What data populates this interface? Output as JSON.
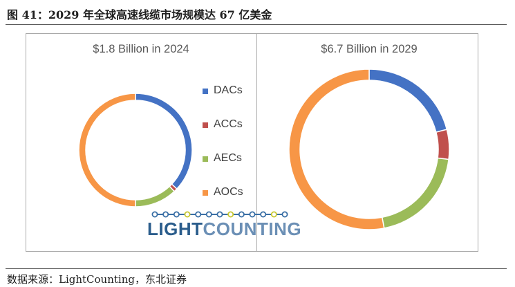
{
  "figure": {
    "title": "图 41：2029 年全球高速线缆市场规模达 67 亿美金",
    "source": "数据来源：LightCounting，东北证券"
  },
  "logo": {
    "part1": "LIGHT",
    "part2": "COUNTING",
    "name": "lightcounting-logo",
    "link_color": "#3a6fa5",
    "dot_color": "#c8c830"
  },
  "legend": [
    {
      "label": "DACs",
      "color": "#4472c4"
    },
    {
      "label": "ACCs",
      "color": "#c0504d"
    },
    {
      "label": "AECs",
      "color": "#9bbb59"
    },
    {
      "label": "AOCs",
      "color": "#f79646"
    }
  ],
  "chart_data": [
    {
      "type": "pie",
      "title": "$1.8 Billion in 2024",
      "categories": [
        "DACs",
        "ACCs",
        "AECs",
        "AOCs"
      ],
      "values": [
        37,
        1,
        12,
        50
      ],
      "colors": [
        "#4472c4",
        "#c0504d",
        "#9bbb59",
        "#f79646"
      ]
    },
    {
      "type": "pie",
      "title": "$6.7 Billion in 2029",
      "categories": [
        "DACs",
        "ACCs",
        "AECs",
        "AOCs"
      ],
      "values": [
        21,
        6,
        20,
        53
      ],
      "colors": [
        "#4472c4",
        "#c0504d",
        "#9bbb59",
        "#f79646"
      ]
    }
  ]
}
